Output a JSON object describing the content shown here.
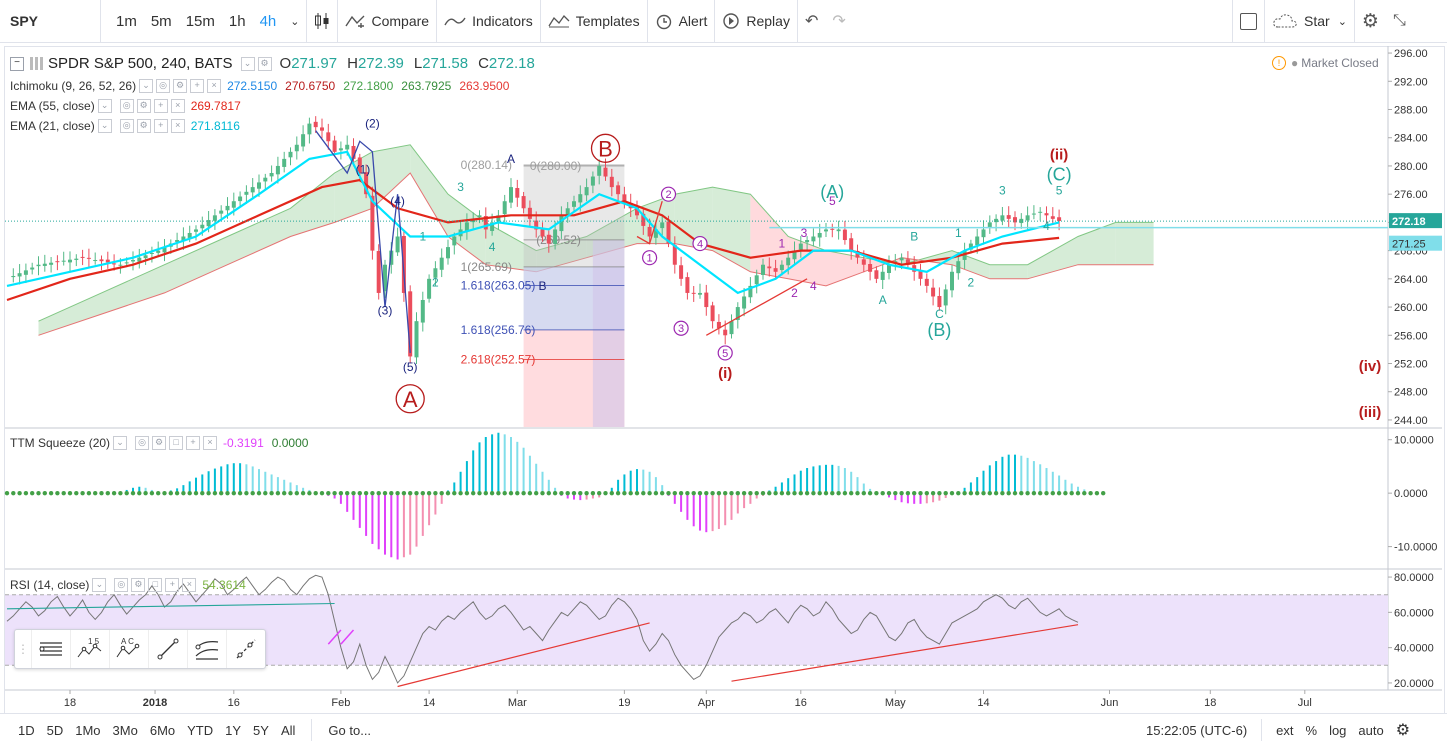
{
  "toolbar": {
    "symbol": "SPY",
    "intervals": [
      "1m",
      "5m",
      "15m",
      "1h",
      "4h"
    ],
    "active_interval": "4h",
    "compare": "Compare",
    "indicators": "Indicators",
    "templates": "Templates",
    "alert": "Alert",
    "replay": "Replay",
    "star": "Star"
  },
  "legend": {
    "title": "SPDR S&P 500, 240, BATS",
    "o_label": "O",
    "o": "271.97",
    "h_label": "H",
    "h": "272.39",
    "l_label": "L",
    "l": "271.58",
    "c_label": "C",
    "c": "272.18",
    "market_status": "Market Closed",
    "ichimoku": "Ichimoku (9, 26, 52, 26)",
    "ichimoku_values": [
      "272.5150",
      "270.6750",
      "272.1800",
      "263.7925",
      "263.9500"
    ],
    "ema55": "EMA (55, close)",
    "ema55_value": "269.7817",
    "ema21": "EMA (21, close)",
    "ema21_value": "271.8116",
    "ttm": "TTM Squeeze (20)",
    "ttm_values": [
      "-0.3191",
      "0.0000"
    ],
    "rsi": "RSI (14, close)",
    "rsi_value": "54.3614"
  },
  "colors": {
    "up": "#53b987",
    "down": "#eb4d5c",
    "ema21": "#00e5ff",
    "ema55": "#e2261a",
    "cloud_green": "#c8e6c9",
    "cloud_red": "#ffcdd2",
    "rsi_band": "#ede2fb",
    "wave_red": "#b71c1c",
    "wave_teal": "#26a69a",
    "wave_purple": "#9c27b0",
    "wave_navy": "#1a237e"
  },
  "chart_data": {
    "type": "candlestick",
    "symbol": "SPY",
    "title": "SPDR S&P 500, 240, BATS",
    "price_axis": {
      "ticks": [
        "296.00",
        "292.00",
        "288.00",
        "284.00",
        "280.00",
        "276.00",
        "272.00",
        "268.00",
        "264.00",
        "260.00",
        "256.00",
        "252.00",
        "248.00",
        "244.00"
      ],
      "range": [
        243,
        297
      ],
      "last_price": "272.18",
      "level": "271.25"
    },
    "time_axis": [
      "18",
      "2018",
      "16",
      "Feb",
      "14",
      "Mar",
      "19",
      "Apr",
      "16",
      "May",
      "14",
      "Jun",
      "18",
      "Jul"
    ],
    "price_path": [
      [
        0,
        264
      ],
      [
        5,
        266
      ],
      [
        12,
        267
      ],
      [
        18,
        266
      ],
      [
        24,
        268
      ],
      [
        30,
        271
      ],
      [
        36,
        275
      ],
      [
        42,
        279
      ],
      [
        46,
        283
      ],
      [
        48,
        286
      ],
      [
        50,
        285
      ],
      [
        52,
        282
      ],
      [
        54,
        283
      ],
      [
        56,
        279
      ],
      [
        57,
        276
      ],
      [
        58,
        268
      ],
      [
        59,
        262
      ],
      [
        60,
        266
      ],
      [
        62,
        270
      ],
      [
        63,
        262
      ],
      [
        64,
        253
      ],
      [
        65,
        258
      ],
      [
        67,
        264
      ],
      [
        69,
        267
      ],
      [
        71,
        270
      ],
      [
        73,
        272
      ],
      [
        75,
        273
      ],
      [
        76,
        271
      ],
      [
        78,
        273
      ],
      [
        80,
        277
      ],
      [
        82,
        274
      ],
      [
        84,
        271
      ],
      [
        86,
        269
      ],
      [
        88,
        273
      ],
      [
        90,
        275
      ],
      [
        92,
        277
      ],
      [
        94,
        280
      ],
      [
        96,
        277
      ],
      [
        98,
        275
      ],
      [
        100,
        273
      ],
      [
        102,
        270
      ],
      [
        104,
        272
      ],
      [
        106,
        266
      ],
      [
        108,
        262
      ],
      [
        110,
        262
      ],
      [
        112,
        258
      ],
      [
        114,
        256
      ],
      [
        116,
        260
      ],
      [
        118,
        263
      ],
      [
        120,
        266
      ],
      [
        122,
        265
      ],
      [
        124,
        267
      ],
      [
        126,
        269
      ],
      [
        128,
        270
      ],
      [
        130,
        271
      ],
      [
        132,
        271
      ],
      [
        134,
        268
      ],
      [
        136,
        266
      ],
      [
        138,
        264
      ],
      [
        140,
        266
      ],
      [
        142,
        267
      ],
      [
        144,
        265
      ],
      [
        146,
        263
      ],
      [
        148,
        260
      ],
      [
        150,
        265
      ],
      [
        152,
        268
      ],
      [
        154,
        270
      ],
      [
        156,
        272
      ],
      [
        158,
        273
      ],
      [
        160,
        272
      ],
      [
        162,
        273
      ],
      [
        164,
        273.5
      ],
      [
        166,
        272.5
      ],
      [
        167,
        272.2
      ]
    ],
    "ema21": [
      [
        0,
        263
      ],
      [
        10,
        265
      ],
      [
        20,
        267
      ],
      [
        30,
        270
      ],
      [
        40,
        276
      ],
      [
        48,
        281
      ],
      [
        54,
        282
      ],
      [
        58,
        275
      ],
      [
        64,
        270
      ],
      [
        70,
        270
      ],
      [
        78,
        272
      ],
      [
        86,
        271
      ],
      [
        94,
        276
      ],
      [
        100,
        274
      ],
      [
        104,
        270
      ],
      [
        110,
        266
      ],
      [
        116,
        262
      ],
      [
        122,
        264
      ],
      [
        128,
        268
      ],
      [
        134,
        268
      ],
      [
        140,
        266
      ],
      [
        146,
        265
      ],
      [
        152,
        268
      ],
      [
        158,
        270
      ],
      [
        167,
        272
      ]
    ],
    "ema55": [
      [
        0,
        261
      ],
      [
        10,
        264
      ],
      [
        20,
        266
      ],
      [
        30,
        269
      ],
      [
        40,
        273
      ],
      [
        50,
        277
      ],
      [
        56,
        278
      ],
      [
        62,
        274
      ],
      [
        70,
        272
      ],
      [
        80,
        273
      ],
      [
        90,
        273
      ],
      [
        98,
        275
      ],
      [
        104,
        273
      ],
      [
        110,
        269
      ],
      [
        118,
        267
      ],
      [
        126,
        268
      ],
      [
        134,
        268
      ],
      [
        142,
        266
      ],
      [
        150,
        267
      ],
      [
        158,
        269
      ],
      [
        167,
        269.8
      ]
    ],
    "cloud_top": [
      [
        5,
        258
      ],
      [
        15,
        262
      ],
      [
        25,
        266
      ],
      [
        35,
        270
      ],
      [
        45,
        274
      ],
      [
        52,
        279
      ],
      [
        58,
        282
      ],
      [
        64,
        283
      ],
      [
        70,
        276
      ],
      [
        76,
        272
      ],
      [
        84,
        268
      ],
      [
        92,
        270
      ],
      [
        100,
        274
      ],
      [
        106,
        276
      ],
      [
        112,
        277
      ],
      [
        118,
        276
      ],
      [
        124,
        270
      ],
      [
        130,
        268
      ],
      [
        136,
        267
      ],
      [
        142,
        266
      ],
      [
        150,
        268
      ],
      [
        156,
        266
      ],
      [
        162,
        266
      ],
      [
        170,
        270
      ],
      [
        176,
        272
      ],
      [
        182,
        272
      ]
    ],
    "cloud_bottom": [
      [
        5,
        256
      ],
      [
        15,
        259
      ],
      [
        25,
        262
      ],
      [
        35,
        266
      ],
      [
        45,
        270
      ],
      [
        52,
        272
      ],
      [
        58,
        274
      ],
      [
        64,
        279
      ],
      [
        70,
        270
      ],
      [
        76,
        266
      ],
      [
        84,
        265
      ],
      [
        92,
        267
      ],
      [
        100,
        269
      ],
      [
        106,
        269
      ],
      [
        112,
        268
      ],
      [
        118,
        265
      ],
      [
        124,
        264
      ],
      [
        130,
        263
      ],
      [
        136,
        265
      ],
      [
        142,
        267
      ],
      [
        150,
        266
      ],
      [
        156,
        264
      ],
      [
        162,
        264
      ],
      [
        170,
        266
      ],
      [
        176,
        266
      ],
      [
        182,
        266
      ]
    ],
    "waves": [
      {
        "label": "(1)",
        "x": 56.5,
        "y": 279.5,
        "color": "navy"
      },
      {
        "label": "(2)",
        "x": 58,
        "y": 286,
        "color": "navy"
      },
      {
        "label": "(3)",
        "x": 60,
        "y": 259.5,
        "color": "navy"
      },
      {
        "label": "(4)",
        "x": 62,
        "y": 275,
        "color": "navy"
      },
      {
        "label": "(5)",
        "x": 64,
        "y": 251.5,
        "color": "navy"
      },
      {
        "label": "A",
        "x": 64,
        "y": 247,
        "color": "red",
        "circle": true
      },
      {
        "label": "B",
        "x": 95,
        "y": 282.5,
        "color": "red",
        "circle": true
      },
      {
        "label": "1",
        "x": 66,
        "y": 270,
        "color": "teal"
      },
      {
        "label": "2",
        "x": 68,
        "y": 263.5,
        "color": "teal"
      },
      {
        "label": "3",
        "x": 72,
        "y": 277,
        "color": "teal"
      },
      {
        "label": "4",
        "x": 77,
        "y": 268.5,
        "color": "teal"
      },
      {
        "label": "A",
        "x": 80,
        "y": 281,
        "color": "navy"
      },
      {
        "label": "B",
        "x": 85,
        "y": 263,
        "color": "navy"
      },
      {
        "label": "1",
        "x": 102,
        "y": 267,
        "color": "purple",
        "ring": true
      },
      {
        "label": "2",
        "x": 105,
        "y": 276,
        "color": "purple",
        "ring": true
      },
      {
        "label": "3",
        "x": 107,
        "y": 257,
        "color": "purple",
        "ring": true
      },
      {
        "label": "4",
        "x": 110,
        "y": 269,
        "color": "purple",
        "ring": true
      },
      {
        "label": "5",
        "x": 114,
        "y": 253.5,
        "color": "purple",
        "ring": true
      },
      {
        "label": "(i)",
        "x": 114,
        "y": 250.5,
        "color": "red"
      },
      {
        "label": "1",
        "x": 123,
        "y": 269,
        "color": "purple"
      },
      {
        "label": "2",
        "x": 125,
        "y": 262,
        "color": "purple"
      },
      {
        "label": "3",
        "x": 126.5,
        "y": 270.5,
        "color": "purple"
      },
      {
        "label": "4",
        "x": 128,
        "y": 263,
        "color": "purple"
      },
      {
        "label": "5",
        "x": 131,
        "y": 275,
        "color": "purple"
      },
      {
        "label": "(A)",
        "x": 131,
        "y": 276,
        "color": "teal"
      },
      {
        "label": "A",
        "x": 139,
        "y": 261,
        "color": "teal"
      },
      {
        "label": "B",
        "x": 144,
        "y": 270,
        "color": "teal"
      },
      {
        "label": "C",
        "x": 148,
        "y": 259,
        "color": "teal"
      },
      {
        "label": "(B)",
        "x": 148,
        "y": 256.5,
        "color": "teal"
      },
      {
        "label": "1",
        "x": 151,
        "y": 270.5,
        "color": "teal"
      },
      {
        "label": "2",
        "x": 153,
        "y": 263.5,
        "color": "teal"
      },
      {
        "label": "3",
        "x": 158,
        "y": 276.5,
        "color": "teal"
      },
      {
        "label": "4",
        "x": 165,
        "y": 271.5,
        "color": "teal"
      },
      {
        "label": "5",
        "x": 167,
        "y": 276.5,
        "color": "teal"
      },
      {
        "label": "(C)",
        "x": 167,
        "y": 278.5,
        "color": "teal"
      },
      {
        "label": "(ii)",
        "x": 167,
        "y": 281.5,
        "color": "red"
      },
      {
        "label": "(iv)",
        "x": 222,
        "y": 251.5,
        "color": "red"
      },
      {
        "label": "(iii)",
        "x": 218,
        "y": 245,
        "color": "red"
      }
    ],
    "fib_labels": [
      {
        "label": "0(280.14)",
        "y": 280.14,
        "color": "#9e9e9e"
      },
      {
        "label": "0(280.00)",
        "y": 280.0,
        "color": "#9e9e9e"
      },
      {
        "label": "(269.52)",
        "y": 269.52,
        "color": "#888"
      },
      {
        "label": "1(265.69)",
        "y": 265.69,
        "color": "#888"
      },
      {
        "label": "1.618(263.05)",
        "y": 263.05,
        "color": "#3f51b5"
      },
      {
        "label": "1.618(256.76)",
        "y": 256.76,
        "color": "#3f51b5"
      },
      {
        "label": "2.618(252.57)",
        "y": 252.57,
        "color": "#e53935"
      }
    ],
    "ttm": {
      "ticks": [
        "10.0000",
        "0.0000",
        "-10.0000"
      ],
      "range": [
        -14,
        12
      ],
      "values": [
        0,
        0,
        0,
        0,
        0,
        0,
        0,
        0,
        0,
        0,
        0,
        0,
        0,
        0,
        0,
        0,
        0,
        0,
        0.3,
        0.6,
        1,
        1.2,
        1,
        0.6,
        0.3,
        0.2,
        0.5,
        0.9,
        1.5,
        2.2,
        2.9,
        3.5,
        4.1,
        4.6,
        5,
        5.4,
        5.6,
        5.6,
        5.4,
        5,
        4.5,
        4,
        3.5,
        3,
        2.5,
        2,
        1.5,
        1,
        0.6,
        0.3,
        -0.2,
        -0.5,
        -1,
        -2,
        -3.5,
        -5,
        -6.5,
        -8,
        -9.5,
        -10.5,
        -11.5,
        -12,
        -12.4,
        -12,
        -11.5,
        -10,
        -8,
        -6,
        -4,
        -2,
        0.5,
        2,
        4,
        6,
        8,
        9.5,
        10.5,
        11,
        11.3,
        11,
        10.5,
        9.6,
        8.5,
        7,
        5.5,
        4,
        2.5,
        1,
        -0.5,
        -1,
        -1.2,
        -1.3,
        -1.2,
        -1,
        -0.8,
        -0.2,
        1,
        2.5,
        3.5,
        4.2,
        4.5,
        4.4,
        4,
        3,
        1.5,
        -0.5,
        -2,
        -3.5,
        -5,
        -6.2,
        -7,
        -7.3,
        -7.1,
        -6.7,
        -6,
        -5,
        -3.8,
        -2.8,
        -2,
        -1,
        -0.5,
        0.5,
        1.2,
        2,
        2.8,
        3.5,
        4.2,
        4.7,
        5,
        5.2,
        5.3,
        5.3,
        5.1,
        4.7,
        4,
        3,
        1.8,
        0.8,
        0.3,
        -0.3,
        -0.8,
        -1.3,
        -1.7,
        -1.9,
        -2,
        -2,
        -1.9,
        -1.7,
        -1.4,
        -0.9,
        -0.3,
        0.3,
        1,
        2,
        3,
        4.2,
        5.2,
        6,
        6.8,
        7.2,
        7.2,
        7,
        6.6,
        6,
        5.4,
        4.7,
        4,
        3.3,
        2.5,
        1.8,
        1.2,
        0.7,
        0.3,
        0.1,
        0.05
      ]
    },
    "rsi": {
      "ticks": [
        "80.0000",
        "60.0000",
        "40.0000",
        "20.0000"
      ],
      "range": [
        16,
        84
      ],
      "band": [
        30,
        70
      ],
      "values": [
        55,
        58,
        62,
        66,
        63,
        58,
        61,
        66,
        69,
        63,
        58,
        62,
        67,
        60,
        56,
        60,
        66,
        70,
        64,
        59,
        63,
        67,
        70,
        75,
        70,
        63,
        66,
        72,
        76,
        71,
        66,
        70,
        74,
        79,
        76,
        70,
        73,
        77,
        80,
        75,
        70,
        73,
        77,
        80,
        78,
        73,
        70,
        75,
        79,
        81,
        80,
        70,
        55,
        40,
        28,
        32,
        42,
        30,
        22,
        26,
        35,
        28,
        20,
        24,
        32,
        40,
        48,
        52,
        50,
        55,
        58,
        56,
        60,
        63,
        66,
        60,
        56,
        58,
        62,
        64,
        60,
        55,
        50,
        52,
        48,
        44,
        50,
        55,
        60,
        58,
        62,
        66,
        64,
        60,
        56,
        58,
        64,
        68,
        66,
        62,
        56,
        44,
        38,
        42,
        48,
        44,
        36,
        30,
        26,
        22,
        24,
        30,
        38,
        46,
        50,
        54,
        56,
        60,
        58,
        54,
        56,
        60,
        62,
        58,
        54,
        60,
        64,
        62,
        58,
        60,
        66,
        62,
        56,
        52,
        48,
        50,
        56,
        60,
        58,
        52,
        46,
        44,
        48,
        54,
        56,
        50,
        46,
        44,
        42,
        48,
        54,
        56,
        58,
        60,
        62,
        66,
        68,
        70,
        68,
        64,
        62,
        66,
        68,
        64,
        60,
        58,
        60,
        62,
        58,
        56,
        54.36
      ],
      "trend_line_1": [
        [
          62,
          18
        ],
        [
          102,
          54
        ]
      ],
      "trend_line_2": [
        [
          115,
          21
        ],
        [
          170,
          53
        ]
      ]
    }
  },
  "bottombar": {
    "ranges": [
      "1D",
      "5D",
      "1Mo",
      "3Mo",
      "6Mo",
      "YTD",
      "1Y",
      "5Y",
      "All"
    ],
    "goto": "Go to...",
    "time": "15:22:05 (UTC-6)",
    "ext": "ext",
    "percent": "%",
    "log": "log",
    "auto": "auto"
  },
  "drawing_toolbar": {
    "labels_15": "1 5",
    "labels_ac": "A C"
  }
}
